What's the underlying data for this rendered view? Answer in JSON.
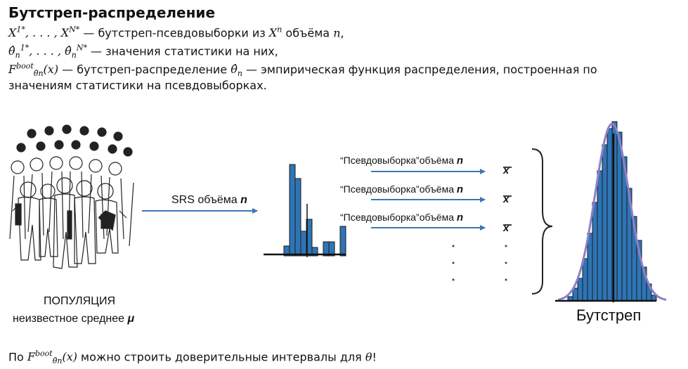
{
  "slide": {
    "title": "Бутстреп-распределение",
    "line1_text": " — бутстреп-псевдовыборки из ",
    "line1_vol": " объёма ",
    "line1_n": "n",
    "line1_end": ",",
    "line2_text": " — значения статистики на них,",
    "line3_text": " — бутстреп-распределение ",
    "line3_tail": " — эмпирическая функция распределения, построенная по",
    "line4_text": "значениям статистики на псевдовыборках.",
    "bottom_prefix": "По ",
    "bottom_text": " можно строить доверительные интервалы для ",
    "bottom_theta": "θ",
    "bottom_end": "!"
  },
  "diagram": {
    "population_label": "ПОПУЛЯЦИЯ",
    "population_sub": "неизвестное среднее ",
    "mu_symbol": "μ",
    "srs_label": "SRS объёма ",
    "srs_n": "n",
    "pseudo_label": "“Псевдовыборка”объёма ",
    "pseudo_n": "n",
    "xbar": "x",
    "bootstrap_label": "Бутстреп"
  },
  "colors": {
    "bar_fill": "#2e75b6",
    "arrow": "#3a78b5",
    "curve": "#8f7fc8"
  }
}
